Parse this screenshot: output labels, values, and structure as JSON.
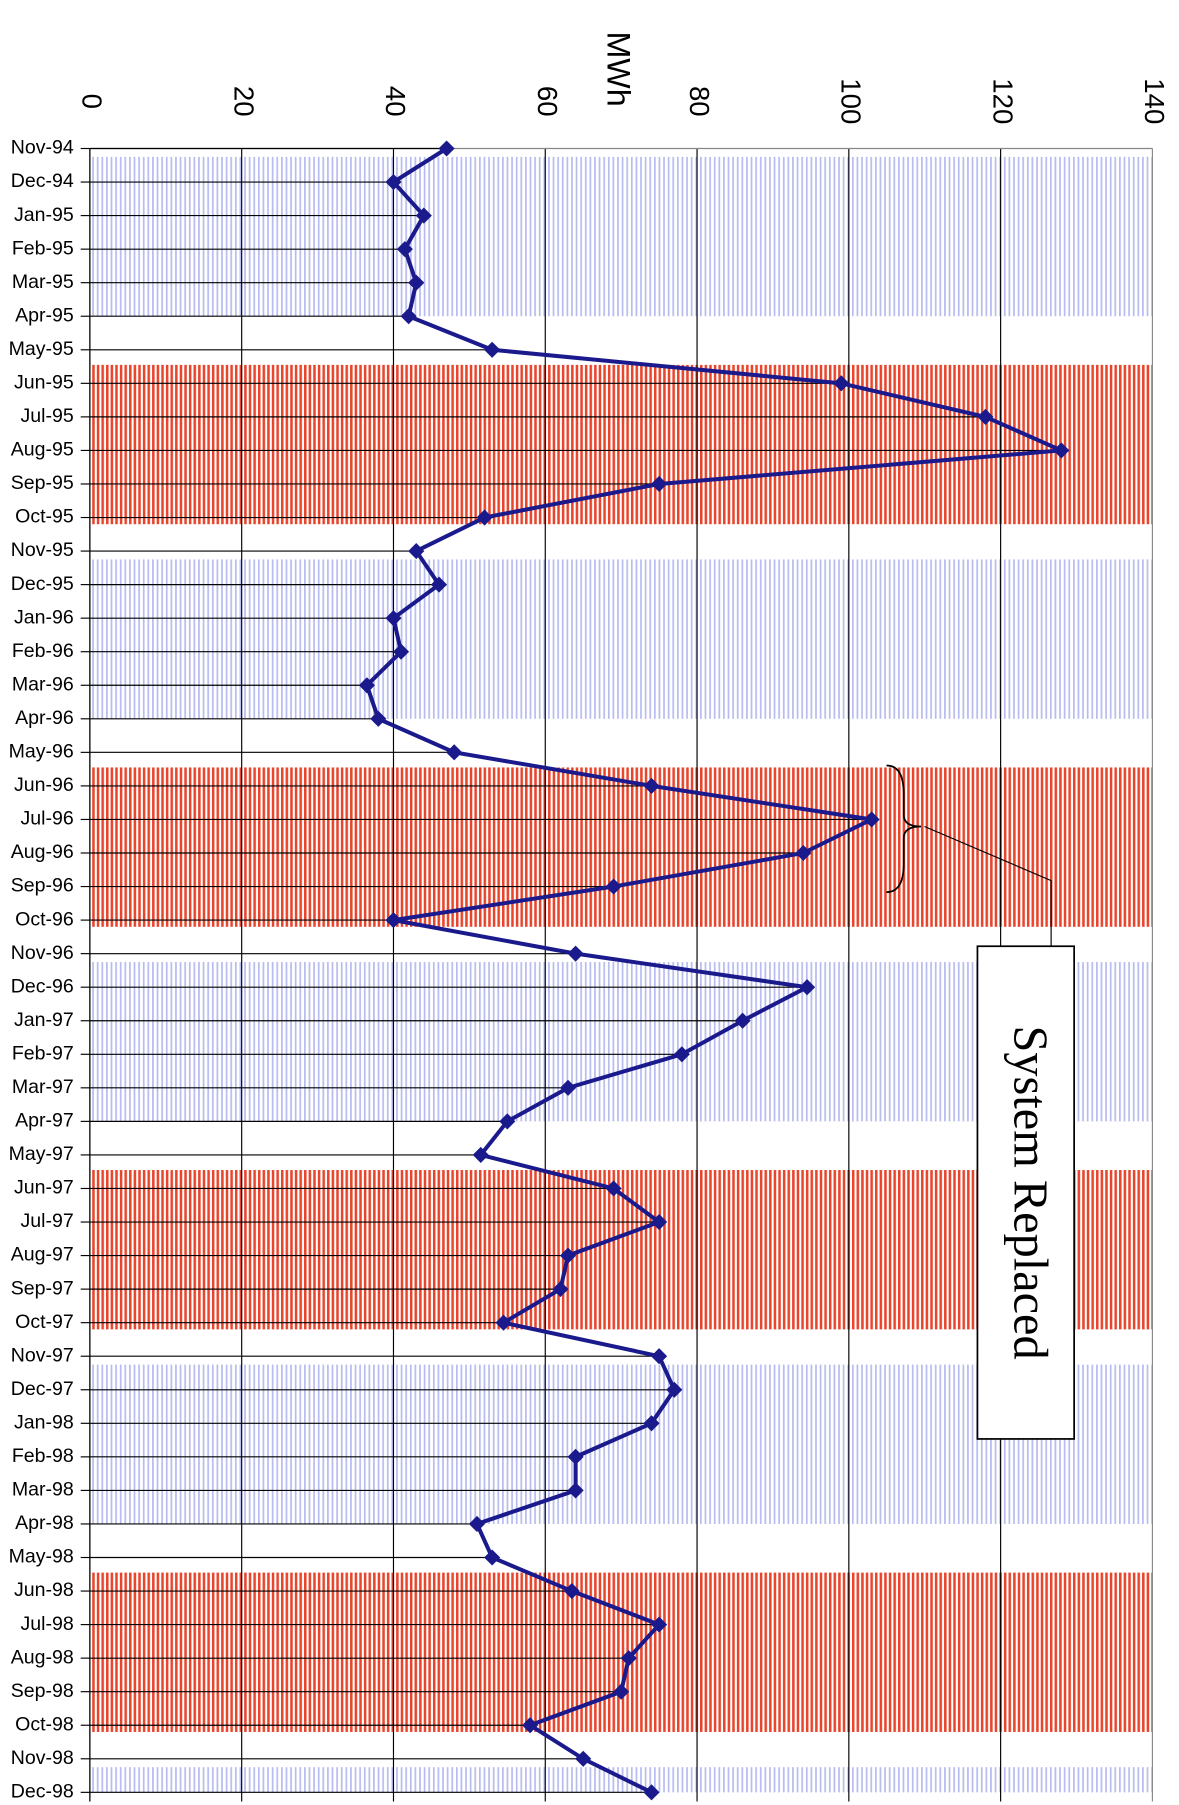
{
  "chart_data": {
    "type": "line",
    "orientation": "horizontal",
    "value_axis_label": "MWh",
    "annotation": "System Replaced",
    "color": "#1a1a8c",
    "categories": [
      "Nov-94",
      "Dec-94",
      "Jan-95",
      "Feb-95",
      "Mar-95",
      "Apr-95",
      "May-95",
      "Jun-95",
      "Jul-95",
      "Aug-95",
      "Sep-95",
      "Oct-95",
      "Nov-95",
      "Dec-95",
      "Jan-96",
      "Feb-96",
      "Mar-96",
      "Apr-96",
      "May-96",
      "Jun-96",
      "Jul-96",
      "Aug-96",
      "Sep-96",
      "Oct-96",
      "Nov-96",
      "Dec-96",
      "Jan-97",
      "Feb-97",
      "Mar-97",
      "Apr-97",
      "May-97",
      "Jun-97",
      "Jul-97",
      "Aug-97",
      "Sep-97",
      "Oct-97",
      "Nov-97",
      "Dec-97",
      "Jan-98",
      "Feb-98",
      "Mar-98",
      "Apr-98",
      "May-98",
      "Jun-98",
      "Jul-98",
      "Aug-98",
      "Sep-98",
      "Oct-98",
      "Nov-98",
      "Dec-98"
    ],
    "values": [
      47,
      40,
      44,
      41.5,
      43,
      42,
      53,
      99,
      118,
      128,
      75,
      52,
      43,
      46,
      40,
      41,
      36.5,
      38,
      48,
      74,
      103,
      94,
      69,
      40,
      64,
      94.5,
      86,
      78,
      63,
      55,
      51.5,
      69,
      75,
      63,
      62,
      54.5,
      75,
      77,
      74,
      64,
      64,
      51,
      53,
      63.5,
      75,
      71,
      70,
      58,
      65,
      74
    ],
    "ylim": [
      0,
      140
    ],
    "yticks": [
      0,
      20,
      40,
      60,
      80,
      100,
      120,
      140
    ],
    "grid": true
  }
}
